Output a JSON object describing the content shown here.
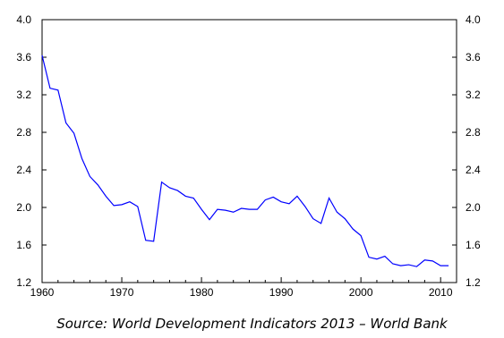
{
  "chart_data": {
    "type": "line",
    "title": "",
    "xlabel": "",
    "ylabel": "",
    "xlim": [
      1960,
      2012
    ],
    "ylim": [
      1.2,
      4.0
    ],
    "x_ticks": [
      "1960",
      "1970",
      "1980",
      "1990",
      "2000",
      "2010"
    ],
    "y_ticks": [
      "1.2",
      "1.6",
      "2.0",
      "2.4",
      "2.8",
      "3.2",
      "3.6",
      "4.0"
    ],
    "grid": false,
    "line_color": "#0000ff",
    "x": [
      1960,
      1961,
      1962,
      1963,
      1964,
      1965,
      1966,
      1967,
      1968,
      1969,
      1970,
      1971,
      1972,
      1973,
      1974,
      1975,
      1976,
      1977,
      1978,
      1979,
      1980,
      1981,
      1982,
      1983,
      1984,
      1985,
      1986,
      1987,
      1988,
      1989,
      1990,
      1991,
      1992,
      1993,
      1994,
      1995,
      1996,
      1997,
      1998,
      1999,
      2000,
      2001,
      2002,
      2003,
      2004,
      2005,
      2006,
      2007,
      2008,
      2009,
      2010,
      2011
    ],
    "values": [
      3.62,
      3.27,
      3.25,
      2.9,
      2.79,
      2.52,
      2.33,
      2.24,
      2.12,
      2.02,
      2.03,
      2.06,
      2.01,
      1.65,
      1.64,
      2.27,
      2.21,
      2.18,
      2.12,
      2.1,
      1.98,
      1.87,
      1.98,
      1.97,
      1.95,
      1.99,
      1.98,
      1.98,
      2.08,
      2.11,
      2.06,
      2.04,
      2.12,
      2.01,
      1.88,
      1.83,
      2.1,
      1.95,
      1.88,
      1.77,
      1.7,
      1.47,
      1.45,
      1.48,
      1.4,
      1.38,
      1.39,
      1.37,
      1.44,
      1.43,
      1.38,
      1.38
    ]
  },
  "source_text": "Source: World Development Indicators 2013 – World Bank"
}
